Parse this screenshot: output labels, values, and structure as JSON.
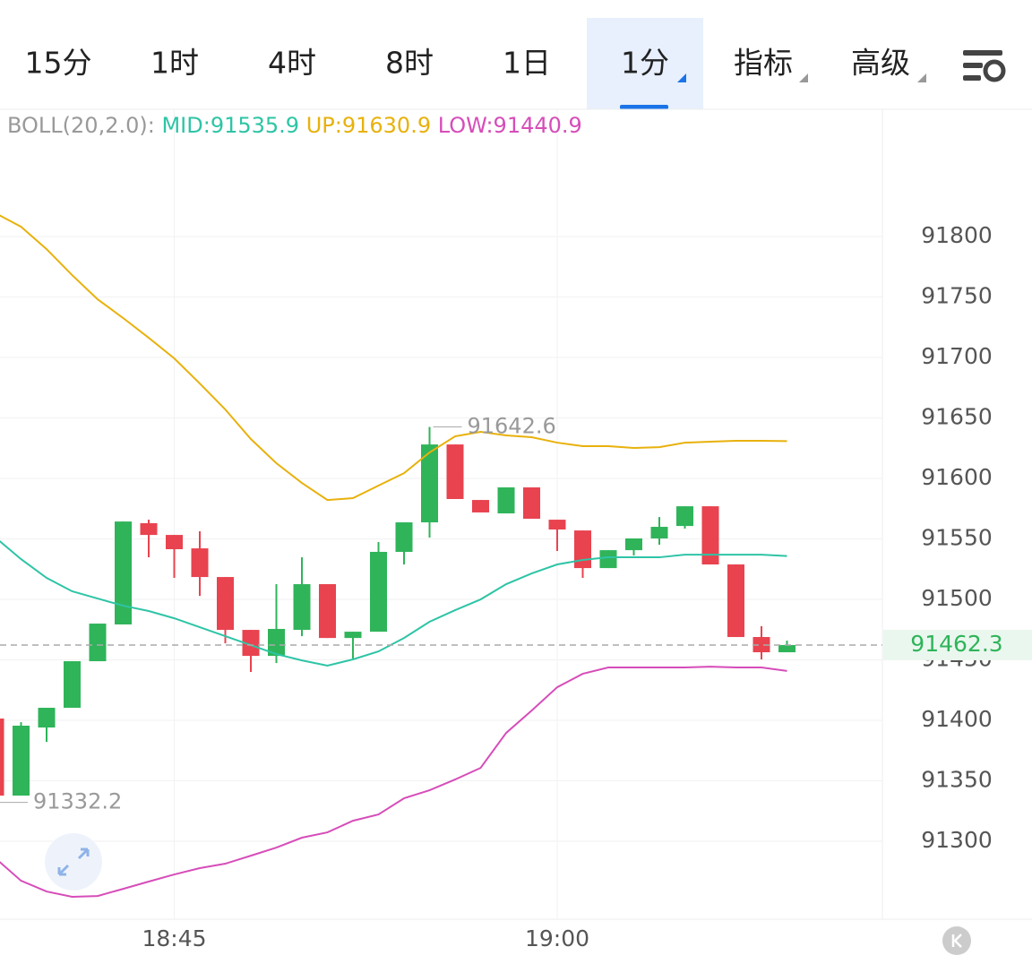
{
  "tabs": [
    "15分",
    "1时",
    "4时",
    "8时",
    "1日",
    "1分",
    "指标",
    "高级"
  ],
  "chart_data": {
    "type": "candlestick",
    "indicator": "BOLL(20,2.0):",
    "categories": [
      null,
      null,
      null,
      null,
      null,
      null,
      null,
      "18:45",
      null,
      null,
      null,
      null,
      null,
      null,
      null,
      null,
      null,
      null,
      null,
      null,
      null,
      null,
      "19:00",
      null,
      null,
      null,
      null,
      null,
      null,
      null,
      null,
      null
    ],
    "open": [
      91401.5,
      91337.8,
      91394.1,
      91410.4,
      91448.9,
      91479.3,
      91563.0,
      91553.3,
      91542.2,
      91518.5,
      91474.8,
      91453.3,
      91474.8,
      91512.6,
      91468.1,
      91473.3,
      91539.3,
      91563.7,
      91628.1,
      91582.2,
      91571.1,
      91592.6,
      91565.9,
      91557.0,
      91525.9,
      91540.7,
      91550.4,
      91560.7,
      91577.0,
      91528.9,
      91468.9,
      91456.3
    ],
    "high": [
      91401.5,
      91398.5,
      91410.4,
      91448.9,
      91480.0,
      91564.4,
      91565.9,
      91553.3,
      91556.3,
      91518.5,
      91474.8,
      91512.6,
      91534.8,
      91512.6,
      91473.3,
      91547.4,
      91563.7,
      91642.6,
      91628.1,
      91582.2,
      91592.6,
      91592.6,
      91565.9,
      91557.0,
      91540.7,
      91550.4,
      91568.1,
      91577.0,
      91577.0,
      91528.9,
      91477.8,
      91465.9
    ],
    "low": [
      91332.2,
      91337.8,
      91382.2,
      91410.4,
      91448.9,
      91479.3,
      91534.8,
      91517.8,
      91502.9,
      91463.7,
      91440.0,
      91447.4,
      91469.6,
      91468.1,
      91451.1,
      91473.3,
      91528.9,
      91551.1,
      91583.0,
      91571.9,
      91571.1,
      91566.7,
      91540.0,
      91517.8,
      91525.9,
      91536.3,
      91545.2,
      91558.5,
      91528.9,
      91468.9,
      91450.4,
      91456.3
    ],
    "close": [
      91337.8,
      91395.6,
      91410.4,
      91448.9,
      91480.0,
      91564.4,
      91553.3,
      91541.5,
      91518.5,
      91474.8,
      91453.3,
      91475.6,
      91512.6,
      91468.1,
      91473.3,
      91539.3,
      91563.7,
      91628.1,
      91583.0,
      91571.9,
      91592.6,
      91566.7,
      91557.8,
      91525.9,
      91540.7,
      91550.4,
      91560.0,
      91577.0,
      91528.9,
      91468.9,
      91456.3,
      91462.3
    ],
    "up_color": "#2fb45a",
    "down_color": "#e8434f",
    "series": [
      {
        "name": "MID:91535.9",
        "color": "#2ec4a6",
        "values": [
          91551.1,
          91533.3,
          91517.8,
          91506.7,
          91500.7,
          91494.8,
          91490.4,
          91484.4,
          91477.0,
          91469.6,
          91462.2,
          91454.8,
          91449.6,
          91445.2,
          91450.4,
          91457.0,
          91468.1,
          91481.5,
          91491.1,
          91500.0,
          91512.6,
          91521.5,
          91528.9,
          91532.6,
          91534.8,
          91534.8,
          91534.8,
          91537.0,
          91537.0,
          91537.0,
          91537.0,
          91535.9
        ]
      },
      {
        "name": "UP:91630.9",
        "color": "#e8b10c",
        "values": [
          91819.3,
          91808.1,
          91789.6,
          91768.1,
          91748.1,
          91732.6,
          91716.3,
          91699.3,
          91678.5,
          91657.0,
          91632.6,
          91612.6,
          91596.3,
          91582.2,
          91583.7,
          91594.1,
          91604.4,
          91621.5,
          91634.8,
          91638.5,
          91635.6,
          91634.1,
          91629.6,
          91626.7,
          91626.7,
          91625.2,
          91625.9,
          91629.6,
          91630.4,
          91631.1,
          91631.1,
          91630.9
        ]
      },
      {
        "name": "LOW:91440.9",
        "color": "#d64db9",
        "values": [
          91285.9,
          91267.4,
          91258.5,
          91254.1,
          91254.8,
          91260.7,
          91266.7,
          91272.6,
          91277.8,
          91281.5,
          91288.1,
          91294.8,
          91303.0,
          91307.4,
          91317.0,
          91322.2,
          91335.6,
          91342.2,
          91351.1,
          91360.7,
          91389.6,
          91408.1,
          91427.4,
          91438.5,
          91443.7,
          91443.7,
          91443.7,
          91443.7,
          91444.4,
          91443.7,
          91443.7,
          91440.9
        ]
      }
    ],
    "ylim": [
      91235.6,
      91905.2
    ],
    "yticks": [
      91300,
      91350,
      91400,
      91450,
      91500,
      91550,
      91600,
      91650,
      91700,
      91750,
      91800
    ],
    "grid": true
  }
}
